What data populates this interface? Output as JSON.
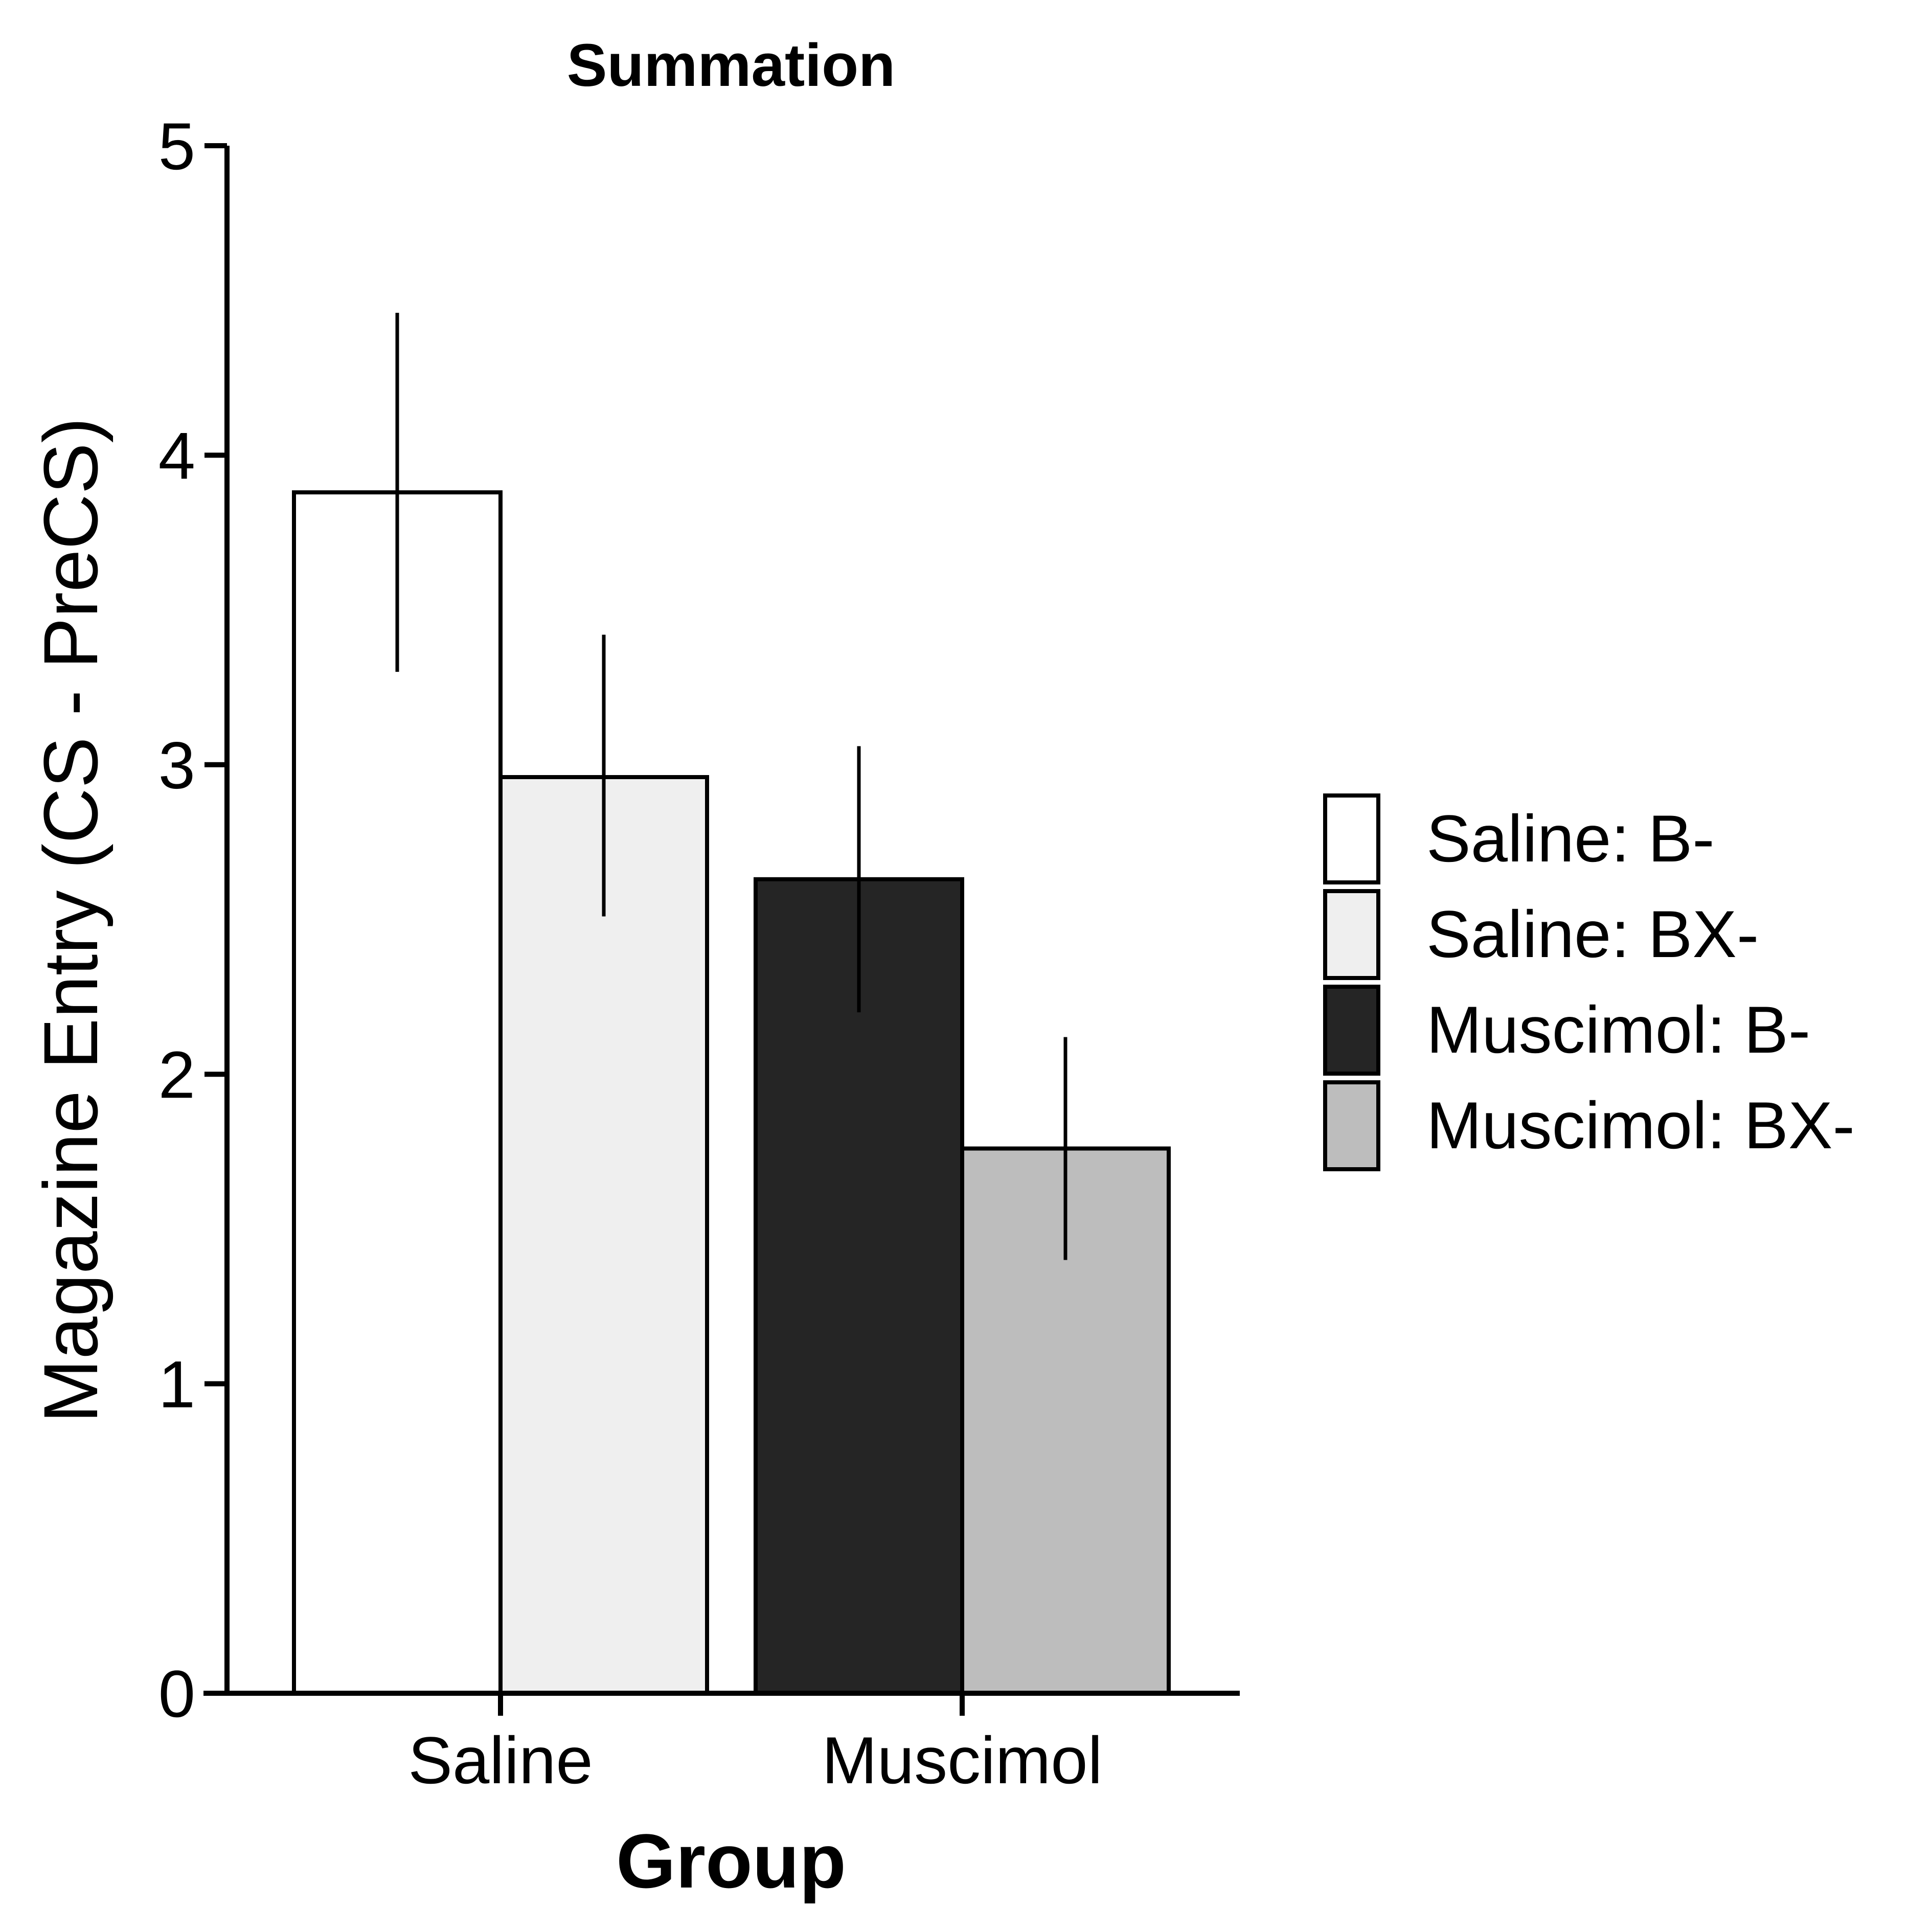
{
  "chart_data": {
    "type": "bar",
    "title": "Summation",
    "xlabel": "Group",
    "ylabel": "Magazine Entry (CS - PreCS)",
    "ylim": [
      0,
      5
    ],
    "yticks": [
      "0",
      "1",
      "2",
      "3",
      "4",
      "5"
    ],
    "categories": [
      "Saline",
      "Muscimol"
    ],
    "series": [
      {
        "name": "Saline: B-",
        "category": "Saline",
        "value": 3.88,
        "err_low": 3.3,
        "err_high": 4.46,
        "color": "#ffffff"
      },
      {
        "name": "Saline: BX-",
        "category": "Saline",
        "value": 2.96,
        "err_low": 2.51,
        "err_high": 3.42,
        "color": "#efefef"
      },
      {
        "name": "Muscimol: B-",
        "category": "Muscimol",
        "value": 2.63,
        "err_low": 2.2,
        "err_high": 3.06,
        "color": "#252525"
      },
      {
        "name": "Muscimol: BX-",
        "category": "Muscimol",
        "value": 1.76,
        "err_low": 1.4,
        "err_high": 2.12,
        "color": "#bdbdbd"
      }
    ],
    "grid": false,
    "legend_position": "right"
  }
}
